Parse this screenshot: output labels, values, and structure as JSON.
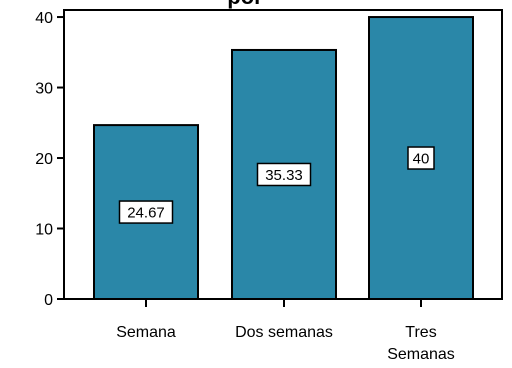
{
  "chart_data": {
    "type": "bar",
    "title": "por",
    "categories": [
      "Semana",
      "Dos semanas",
      "Tres Semanas"
    ],
    "category_lines": [
      [
        "Semana"
      ],
      [
        "Dos semanas"
      ],
      [
        "Tres",
        "Semanas"
      ]
    ],
    "values": [
      24.67,
      35.33,
      40
    ],
    "data_labels": [
      "24.67",
      "35.33",
      "40"
    ],
    "ylim": [
      0,
      41
    ],
    "yticks": [
      0,
      10,
      20,
      30,
      40
    ],
    "bar_color": "#2a87a8",
    "grid": false,
    "legend": "none",
    "xlabel": "",
    "ylabel": ""
  }
}
